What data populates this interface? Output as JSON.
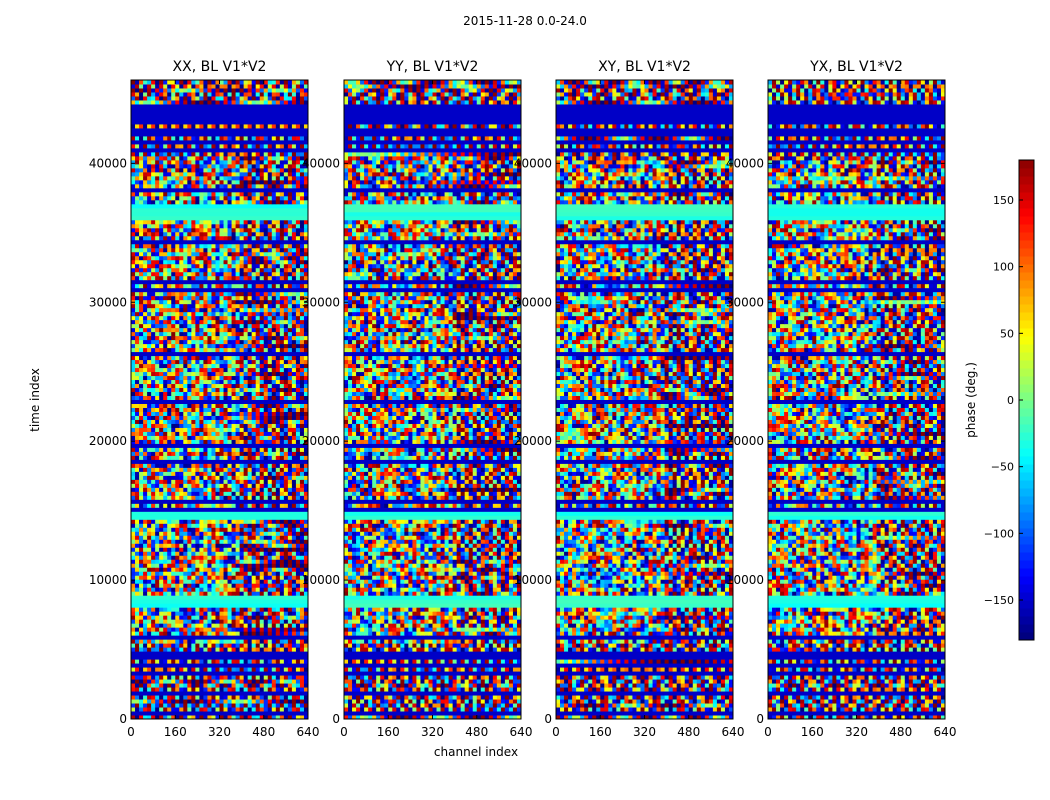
{
  "chart_data": [
    {
      "type": "heatmap",
      "figure_title": "2015-11-28 0.0-24.0",
      "xlabel": "channel index",
      "ylabel": "time index",
      "xlim": [
        0,
        640
      ],
      "ylim": [
        0,
        46000
      ],
      "xticks": [
        "0",
        "160",
        "320",
        "480",
        "640"
      ],
      "yticks": [
        "0",
        "10000",
        "20000",
        "30000",
        "40000"
      ],
      "colorbar": {
        "label": "phase (deg.)",
        "range": [
          -180,
          180
        ],
        "ticks": [
          "150",
          "100",
          "50",
          "0",
          "−50",
          "−100",
          "−150"
        ],
        "colormap": "jet"
      },
      "panels": [
        {
          "title": "XX, BL V1*V2"
        },
        {
          "title": "YY, BL V1*V2"
        },
        {
          "title": "XY, BL V1*V2"
        },
        {
          "title": "YX, BL V1*V2"
        }
      ]
    }
  ]
}
